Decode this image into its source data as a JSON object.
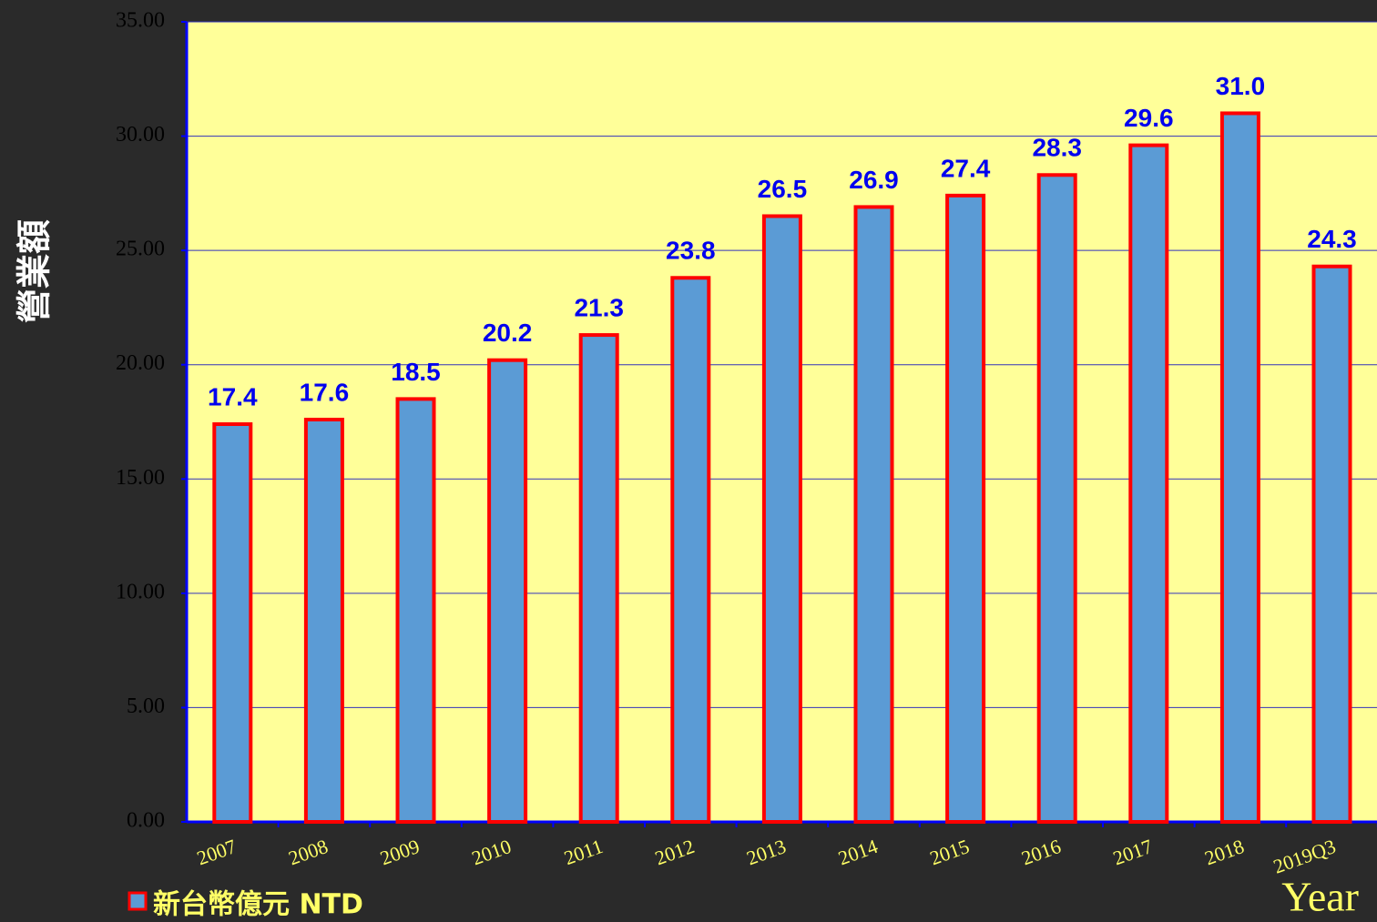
{
  "chart_data": {
    "type": "bar",
    "y_axis_label": "營業額",
    "x_axis_label": "Year",
    "categories": [
      "2007",
      "2008",
      "2009",
      "2010",
      "2011",
      "2012",
      "2013",
      "2014",
      "2015",
      "2016",
      "2017",
      "2018",
      "2019Q3"
    ],
    "series": [
      {
        "name": "新台幣億元 NTD",
        "color": "#5b9bd5",
        "edge_color": "#ff0000",
        "values": [
          17.4,
          17.6,
          18.5,
          20.2,
          21.3,
          23.8,
          26.5,
          26.9,
          27.4,
          28.3,
          29.6,
          31.0,
          24.3
        ],
        "value_labels": [
          "17.4",
          "17.6",
          "18.5",
          "20.2",
          "21.3",
          "23.8",
          "26.5",
          "26.9",
          "27.4",
          "28.3",
          "29.6",
          "31.0",
          "24.3"
        ]
      }
    ],
    "ylim": [
      0,
      35
    ],
    "yticks": [
      {
        "value": 0,
        "label": "0.00"
      },
      {
        "value": 5,
        "label": "5.00"
      },
      {
        "value": 10,
        "label": "10.00"
      },
      {
        "value": 15,
        "label": "15.00"
      },
      {
        "value": 20,
        "label": "20.00"
      },
      {
        "value": 25,
        "label": "25.00"
      },
      {
        "value": 30,
        "label": "30.00"
      },
      {
        "value": 35,
        "label": "35.00"
      }
    ],
    "grid": true,
    "legend": "bottom-left"
  }
}
